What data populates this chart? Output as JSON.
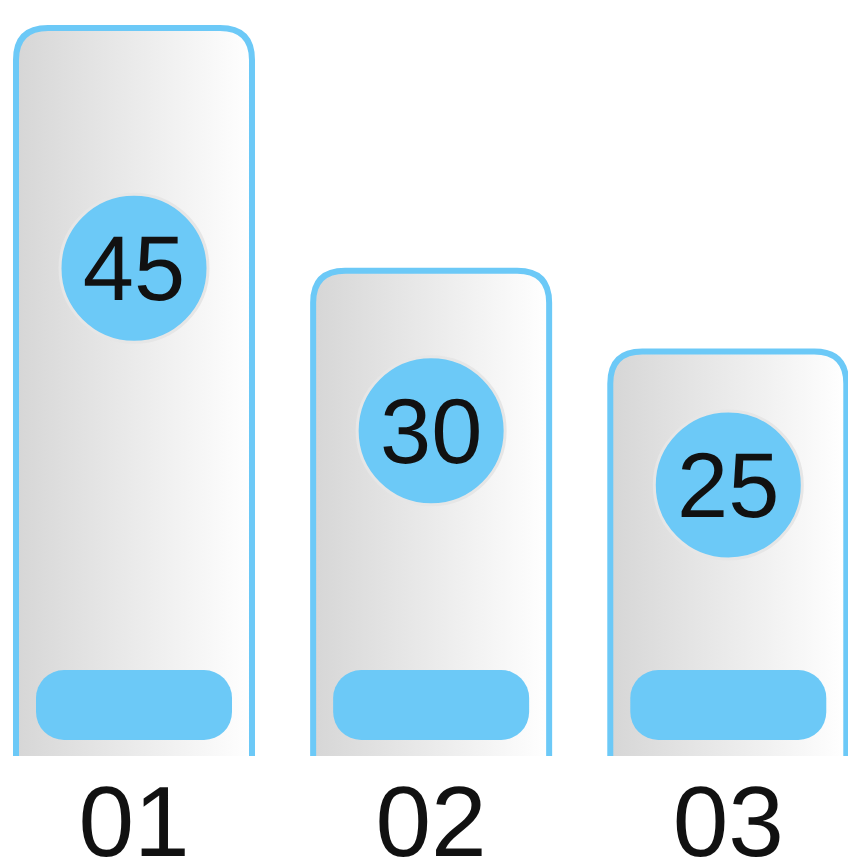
{
  "chart_data": {
    "type": "bar",
    "categories": [
      "01",
      "02",
      "03"
    ],
    "values": [
      45,
      30,
      25
    ],
    "color": "#d6d6d6",
    "data_labels": true
  }
}
